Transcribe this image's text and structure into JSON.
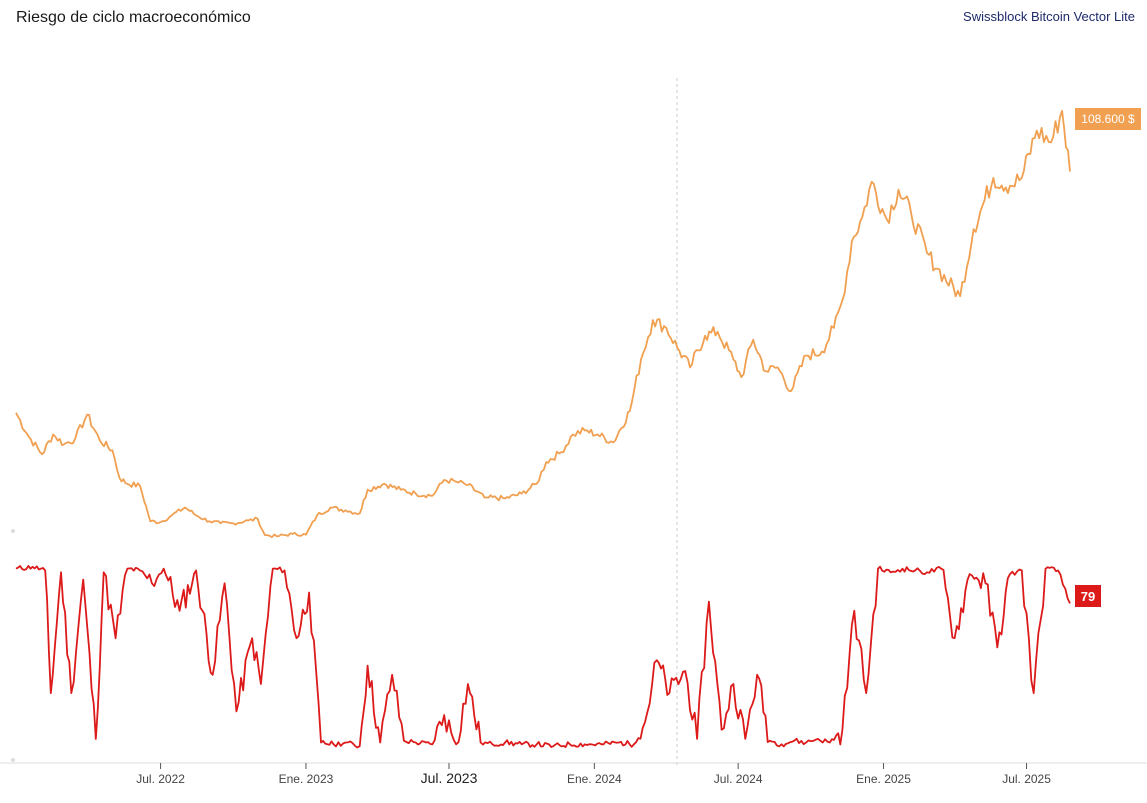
{
  "header": {
    "title": "Riesgo de ciclo macroeconómico",
    "brand": "Swissblock Bitcoin Vector Lite"
  },
  "colors": {
    "price": "#f0a050",
    "risk": "#dd1a1a",
    "badge_price": "#f0a050",
    "badge_risk": "#dd1a1a"
  },
  "chart_data": [
    {
      "type": "line",
      "series": [
        {
          "name": "",
          "x": [
            "2021-12-30",
            "2022-01-15",
            "2022-02-01",
            "2022-02-15",
            "2022-03-01",
            "2022-03-15",
            "2022-03-30",
            "2022-04-15",
            "2022-05-01",
            "2022-05-10",
            "2022-05-20",
            "2022-06-05",
            "2022-06-18",
            "2022-07-01",
            "2022-07-15",
            "2022-08-01",
            "2022-08-15",
            "2022-09-01",
            "2022-09-15",
            "2022-10-01",
            "2022-10-20",
            "2022-11-01",
            "2022-11-10",
            "2022-11-25",
            "2022-12-15",
            "2023-01-01",
            "2023-01-15",
            "2023-02-01",
            "2023-02-20",
            "2023-03-10",
            "2023-03-20",
            "2023-04-10",
            "2023-05-01",
            "2023-05-20",
            "2023-06-10",
            "2023-06-25",
            "2023-07-10",
            "2023-07-25",
            "2023-08-15",
            "2023-08-20",
            "2023-09-10",
            "2023-10-01",
            "2023-10-20",
            "2023-11-01",
            "2023-11-20",
            "2023-12-05",
            "2023-12-20",
            "2024-01-05",
            "2024-01-25",
            "2024-02-15",
            "2024-02-29",
            "2024-03-15",
            "2024-04-01",
            "2024-04-15",
            "2024-05-01",
            "2024-05-20",
            "2024-06-05",
            "2024-06-25",
            "2024-07-05",
            "2024-07-20",
            "2024-08-05",
            "2024-08-20",
            "2024-09-06",
            "2024-09-25",
            "2024-10-15",
            "2024-10-30",
            "2024-11-10",
            "2024-11-22",
            "2024-12-05",
            "2024-12-17",
            "2025-01-05",
            "2025-01-20",
            "2025-02-05",
            "2025-02-25",
            "2025-03-10",
            "2025-04-08",
            "2025-04-25",
            "2025-05-20",
            "2025-06-10",
            "2025-06-25",
            "2025-07-14",
            "2025-08-01",
            "2025-08-15",
            "2025-08-25"
          ],
          "y": [
            47500,
            41500,
            37000,
            42000,
            39500,
            41000,
            47000,
            40500,
            38000,
            31000,
            29500,
            29000,
            20000,
            19800,
            21500,
            23500,
            21500,
            20000,
            19500,
            19500,
            20200,
            20600,
            16500,
            16200,
            16800,
            16600,
            21500,
            23500,
            22800,
            22000,
            28000,
            29500,
            28000,
            27000,
            26500,
            30500,
            30000,
            29200,
            26000,
            26000,
            25800,
            27000,
            29500,
            35000,
            37500,
            42000,
            43000,
            42000,
            40000,
            48000,
            61000,
            71000,
            69000,
            64000,
            59000,
            67000,
            68000,
            61000,
            56500,
            66000,
            58000,
            59000,
            53000,
            62000,
            63000,
            69000,
            76000,
            91000,
            97000,
            106000,
            96500,
            104000,
            98000,
            88000,
            84000,
            77000,
            94000,
            107000,
            105000,
            107000,
            119000,
            116000,
            124000,
            108600
          ]
        },
        {
          "name": "",
          "x": [
            "2021-12-30",
            "2022-01-20",
            "2022-02-05",
            "2022-02-12",
            "2022-02-25",
            "2022-03-10",
            "2022-03-25",
            "2022-04-10",
            "2022-04-20",
            "2022-05-05",
            "2022-05-20",
            "2022-06-05",
            "2022-06-20",
            "2022-07-05",
            "2022-07-25",
            "2022-08-15",
            "2022-09-05",
            "2022-09-20",
            "2022-10-05",
            "2022-10-25",
            "2022-11-05",
            "2022-11-20",
            "2022-12-05",
            "2022-12-20",
            "2023-01-05",
            "2023-01-20",
            "2023-02-05",
            "2023-02-20",
            "2023-03-10",
            "2023-03-20",
            "2023-04-05",
            "2023-04-20",
            "2023-05-05",
            "2023-05-20",
            "2023-06-10",
            "2023-06-25",
            "2023-07-10",
            "2023-07-25",
            "2023-08-10",
            "2023-08-25",
            "2023-09-10",
            "2023-10-01",
            "2023-10-20",
            "2023-11-10",
            "2023-12-01",
            "2023-12-20",
            "2024-01-10",
            "2024-02-01",
            "2024-02-20",
            "2024-03-05",
            "2024-03-20",
            "2024-04-05",
            "2024-04-25",
            "2024-05-10",
            "2024-05-25",
            "2024-06-10",
            "2024-06-25",
            "2024-07-10",
            "2024-07-25",
            "2024-08-10",
            "2024-08-25",
            "2024-09-10",
            "2024-09-25",
            "2024-10-10",
            "2024-10-25",
            "2024-11-10",
            "2024-11-25",
            "2024-12-10",
            "2024-12-25",
            "2025-01-10",
            "2025-01-25",
            "2025-02-10",
            "2025-02-25",
            "2025-03-15",
            "2025-04-01",
            "2025-04-20",
            "2025-05-10",
            "2025-05-25",
            "2025-06-10",
            "2025-06-25",
            "2025-07-10",
            "2025-07-25",
            "2025-08-10",
            "2025-08-25"
          ],
          "y": [
            98,
            99,
            97,
            30,
            96,
            30,
            92,
            5,
            96,
            60,
            98,
            97,
            90,
            98,
            75,
            97,
            40,
            90,
            20,
            60,
            35,
            98,
            97,
            60,
            85,
            3,
            2,
            3,
            1,
            45,
            3,
            40,
            4,
            3,
            2,
            18,
            2,
            35,
            3,
            2,
            3,
            2,
            2,
            1,
            2,
            2,
            2,
            3,
            2,
            14,
            48,
            30,
            42,
            5,
            80,
            10,
            35,
            5,
            40,
            4,
            2,
            4,
            3,
            5,
            3,
            10,
            75,
            30,
            98,
            96,
            98,
            97,
            96,
            98,
            60,
            95,
            90,
            55,
            95,
            97,
            30,
            98,
            97,
            79
          ]
        }
      ],
      "xlabel": "",
      "ylabel": "",
      "x_ticks": [
        "Jul. 2022",
        "Ene. 2023",
        "Jul. 2023",
        "Ene. 2024",
        "Jul. 2024",
        "Ene. 2025",
        "Jul. 2025"
      ],
      "price_ylim": [
        14000,
        128000
      ],
      "risk_ylim": [
        0,
        100
      ],
      "last_price_label": "108.600 $",
      "last_risk_label": "79",
      "grid": false,
      "legend": "none"
    }
  ]
}
